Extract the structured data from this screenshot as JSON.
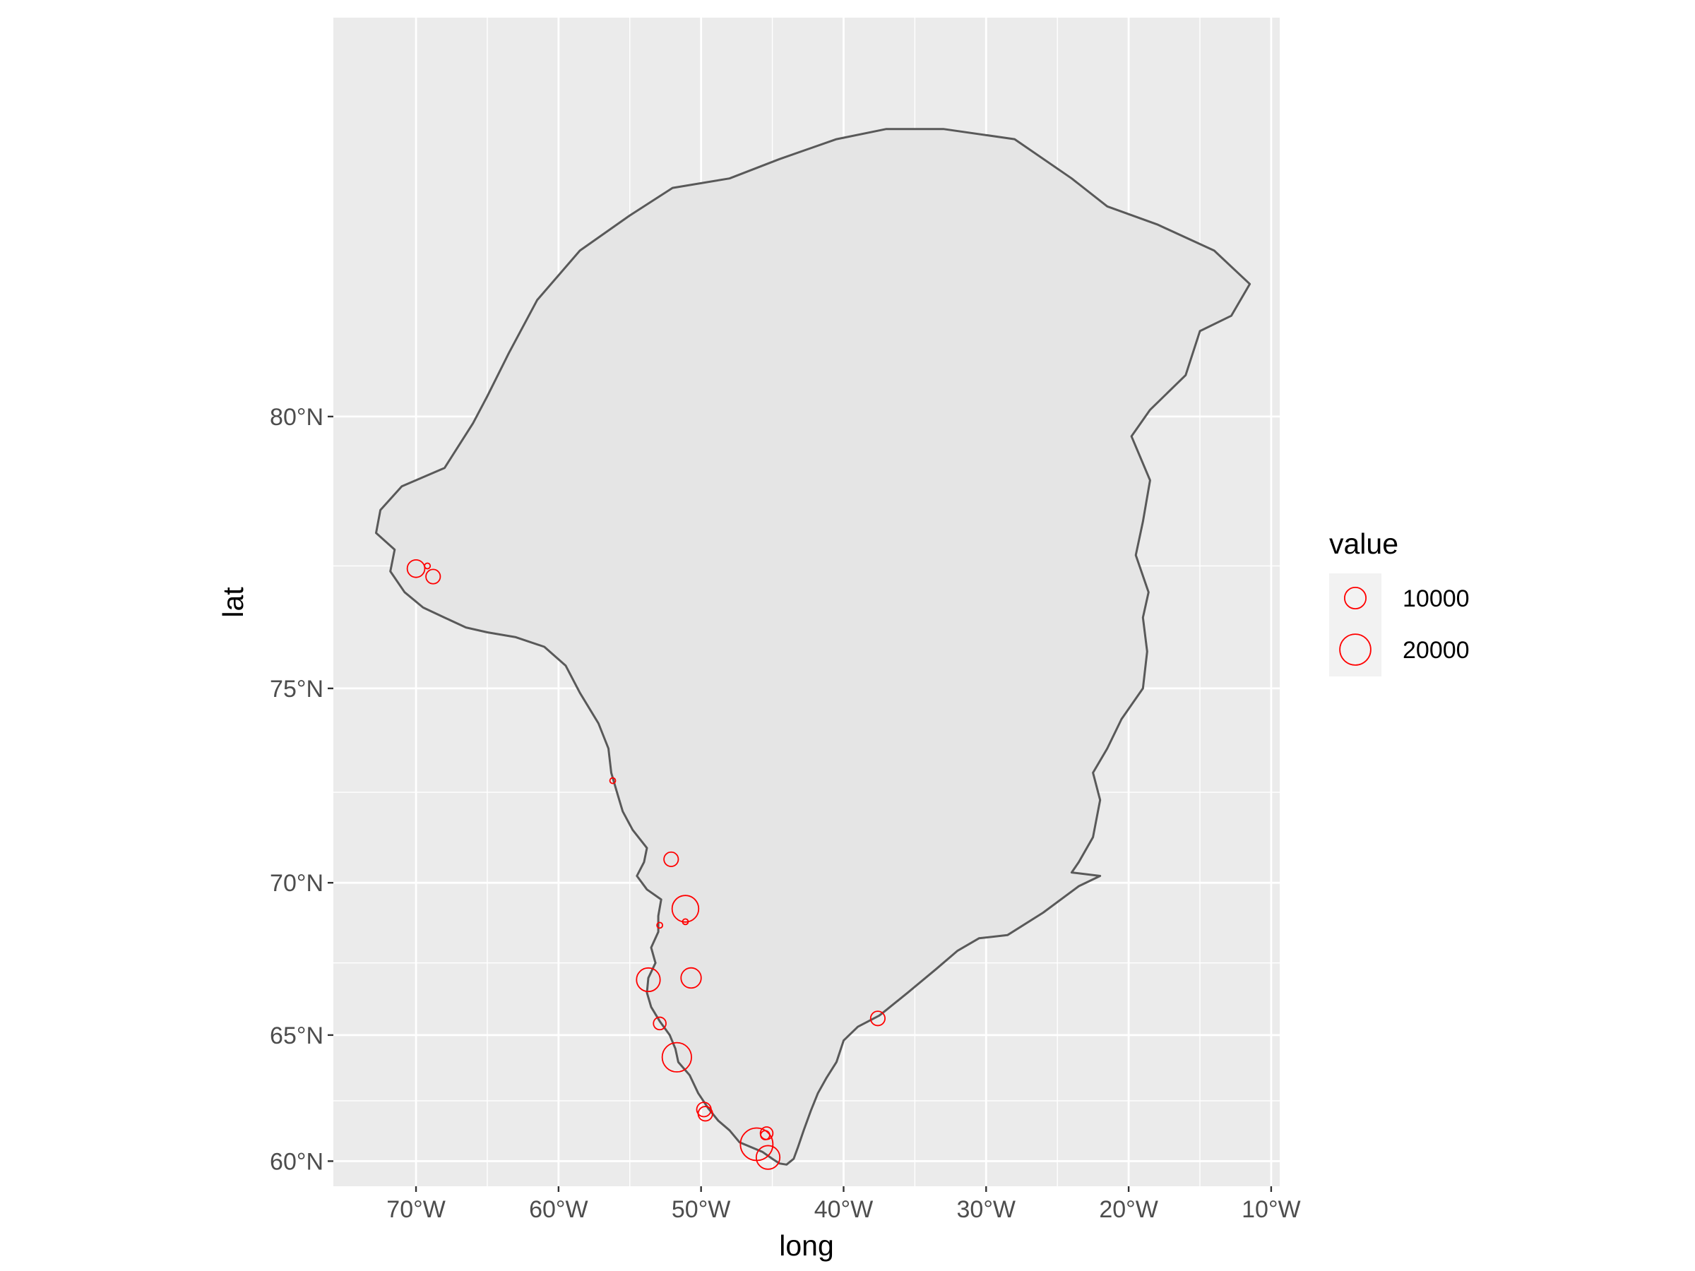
{
  "chart_data": {
    "type": "scatter",
    "projection": "mercator",
    "xlabel": "long",
    "ylabel": "lat",
    "xlim": [
      -75.8,
      -9.4
    ],
    "ylim": [
      58.9,
      84.5
    ],
    "x_ticks": [
      {
        "value": -70,
        "label": "70°W"
      },
      {
        "value": -60,
        "label": "60°W"
      },
      {
        "value": -50,
        "label": "50°W"
      },
      {
        "value": -40,
        "label": "40°W"
      },
      {
        "value": -30,
        "label": "30°W"
      },
      {
        "value": -20,
        "label": "20°W"
      },
      {
        "value": -10,
        "label": "10°W"
      }
    ],
    "y_ticks": [
      {
        "value": 60,
        "label": "60°N"
      },
      {
        "value": 65,
        "label": "65°N"
      },
      {
        "value": 70,
        "label": "70°N"
      },
      {
        "value": 75,
        "label": "75°N"
      },
      {
        "value": 80,
        "label": "80°N"
      }
    ],
    "grid": true,
    "panel_color": "#ebebeb",
    "land_color": "#e5e5e5",
    "outline_color": "#595959",
    "point_color": "#ff0000",
    "points": [
      {
        "long": -69.2,
        "lat": 77.5,
        "value": 1500
      },
      {
        "long": -70.0,
        "lat": 77.45,
        "value": 7000
      },
      {
        "long": -68.8,
        "lat": 77.3,
        "value": 5000
      },
      {
        "long": -56.2,
        "lat": 72.8,
        "value": 1500
      },
      {
        "long": -52.1,
        "lat": 70.68,
        "value": 5000
      },
      {
        "long": -51.1,
        "lat": 69.22,
        "value": 15000
      },
      {
        "long": -51.1,
        "lat": 68.82,
        "value": 1500
      },
      {
        "long": -52.9,
        "lat": 68.71,
        "value": 1500
      },
      {
        "long": -53.7,
        "lat": 66.94,
        "value": 12000
      },
      {
        "long": -50.7,
        "lat": 67.0,
        "value": 9000
      },
      {
        "long": -52.9,
        "lat": 65.42,
        "value": 4000
      },
      {
        "long": -37.6,
        "lat": 65.6,
        "value": 5000
      },
      {
        "long": -51.7,
        "lat": 64.18,
        "value": 18000
      },
      {
        "long": -49.8,
        "lat": 62.15,
        "value": 5000
      },
      {
        "long": -49.7,
        "lat": 61.98,
        "value": 5000
      },
      {
        "long": -45.4,
        "lat": 61.18,
        "value": 4000
      },
      {
        "long": -45.5,
        "lat": 61.1,
        "value": 2500
      },
      {
        "long": -46.1,
        "lat": 60.72,
        "value": 22000
      },
      {
        "long": -45.3,
        "lat": 60.16,
        "value": 12000
      }
    ],
    "legend": {
      "title": "value",
      "placement": "right",
      "entries": [
        {
          "label": "10000",
          "value": 10000
        },
        {
          "label": "20000",
          "value": 20000
        }
      ]
    }
  },
  "coastline": [
    [
      -72.5,
      78.5
    ],
    [
      -71.0,
      78.9
    ],
    [
      -68.0,
      79.2
    ],
    [
      -66.0,
      79.9
    ],
    [
      -65.0,
      80.3
    ],
    [
      -63.5,
      80.9
    ],
    [
      -61.5,
      81.6
    ],
    [
      -58.5,
      82.2
    ],
    [
      -55.0,
      82.6
    ],
    [
      -52.0,
      82.9
    ],
    [
      -48.0,
      83.0
    ],
    [
      -44.5,
      83.2
    ],
    [
      -40.5,
      83.4
    ],
    [
      -37.0,
      83.5
    ],
    [
      -33.0,
      83.5
    ],
    [
      -28.0,
      83.4
    ],
    [
      -24.0,
      83.0
    ],
    [
      -21.5,
      82.7
    ],
    [
      -18.0,
      82.5
    ],
    [
      -14.0,
      82.2
    ],
    [
      -11.5,
      81.8
    ],
    [
      -12.8,
      81.4
    ],
    [
      -15.0,
      81.2
    ],
    [
      -16.0,
      80.6
    ],
    [
      -18.5,
      80.1
    ],
    [
      -19.8,
      79.7
    ],
    [
      -18.5,
      79.0
    ],
    [
      -19.0,
      78.3
    ],
    [
      -19.5,
      77.7
    ],
    [
      -18.6,
      77.0
    ],
    [
      -19.0,
      76.5
    ],
    [
      -18.7,
      75.8
    ],
    [
      -19.0,
      75.0
    ],
    [
      -20.5,
      74.3
    ],
    [
      -21.5,
      73.6
    ],
    [
      -22.5,
      73.0
    ],
    [
      -22.0,
      72.3
    ],
    [
      -22.5,
      71.3
    ],
    [
      -23.5,
      70.6
    ],
    [
      -24.0,
      70.3
    ],
    [
      -22.0,
      70.2
    ],
    [
      -23.5,
      69.9
    ],
    [
      -26.0,
      69.1
    ],
    [
      -28.5,
      68.4
    ],
    [
      -30.5,
      68.3
    ],
    [
      -32.0,
      67.9
    ],
    [
      -33.5,
      67.3
    ],
    [
      -35.5,
      66.5
    ],
    [
      -37.0,
      65.9
    ],
    [
      -37.5,
      65.7
    ],
    [
      -39.0,
      65.3
    ],
    [
      -40.0,
      64.8
    ],
    [
      -40.5,
      64.0
    ],
    [
      -41.2,
      63.4
    ],
    [
      -41.8,
      62.8
    ],
    [
      -42.3,
      62.1
    ],
    [
      -42.8,
      61.3
    ],
    [
      -43.2,
      60.6
    ],
    [
      -43.5,
      60.1
    ],
    [
      -44.0,
      59.85
    ],
    [
      -44.5,
      59.9
    ],
    [
      -45.0,
      60.1
    ],
    [
      -45.7,
      60.4
    ],
    [
      -46.5,
      60.6
    ],
    [
      -47.3,
      60.8
    ],
    [
      -48.0,
      61.3
    ],
    [
      -48.8,
      61.7
    ],
    [
      -49.5,
      62.2
    ],
    [
      -50.2,
      62.8
    ],
    [
      -50.8,
      63.5
    ],
    [
      -51.6,
      64.0
    ],
    [
      -51.8,
      64.5
    ],
    [
      -52.2,
      65.0
    ],
    [
      -52.9,
      65.5
    ],
    [
      -53.5,
      66.0
    ],
    [
      -53.8,
      66.5
    ],
    [
      -53.7,
      67.0
    ],
    [
      -53.2,
      67.5
    ],
    [
      -53.5,
      68.0
    ],
    [
      -53.0,
      68.5
    ],
    [
      -53.0,
      69.0
    ],
    [
      -52.8,
      69.5
    ],
    [
      -53.8,
      69.8
    ],
    [
      -54.5,
      70.2
    ],
    [
      -54.0,
      70.6
    ],
    [
      -53.8,
      71.0
    ],
    [
      -54.8,
      71.5
    ],
    [
      -55.5,
      72.0
    ],
    [
      -55.9,
      72.5
    ],
    [
      -56.3,
      73.0
    ],
    [
      -56.5,
      73.6
    ],
    [
      -57.2,
      74.2
    ],
    [
      -58.5,
      74.9
    ],
    [
      -59.5,
      75.5
    ],
    [
      -61.0,
      75.9
    ],
    [
      -63.0,
      76.1
    ],
    [
      -65.0,
      76.2
    ],
    [
      -66.5,
      76.3
    ],
    [
      -68.0,
      76.5
    ],
    [
      -69.5,
      76.7
    ],
    [
      -70.8,
      77.0
    ],
    [
      -71.8,
      77.4
    ],
    [
      -71.5,
      77.8
    ],
    [
      -72.8,
      78.1
    ]
  ]
}
